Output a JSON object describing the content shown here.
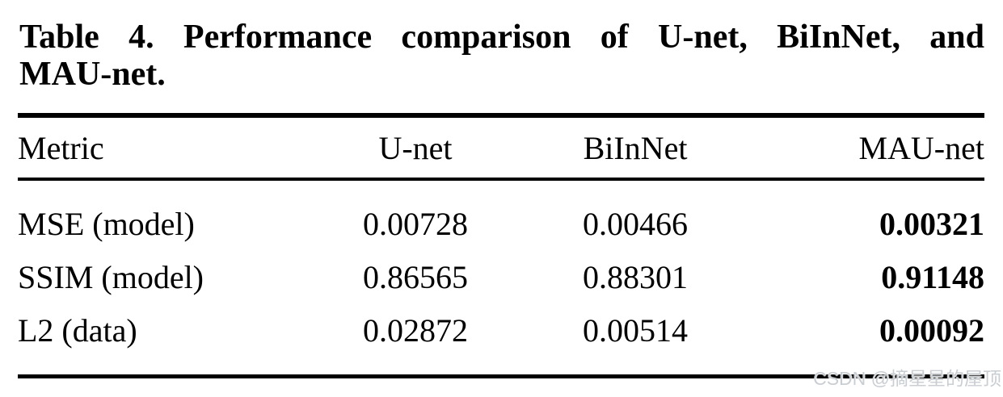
{
  "caption": {
    "line1": "Table 4. Performance comparison of U-net, BiInNet, and",
    "line2": "MAU-net.",
    "full": "Table 4. Performance comparison of U-net, BiInNet, and MAU-net."
  },
  "chart_data": {
    "type": "table",
    "title": "Table 4. Performance comparison of U-net, BiInNet, and MAU-net.",
    "columns": [
      "Metric",
      "U-net",
      "BiInNet",
      "MAU-net"
    ],
    "rows": [
      {
        "metric": "MSE (model)",
        "values": [
          "0.00728",
          "0.00466",
          "0.00321"
        ],
        "best_column": "MAU-net"
      },
      {
        "metric": "SSIM (model)",
        "values": [
          "0.86565",
          "0.88301",
          "0.91148"
        ],
        "best_column": "MAU-net"
      },
      {
        "metric": "L2 (data)",
        "values": [
          "0.02872",
          "0.00514",
          "0.00092"
        ],
        "best_column": "MAU-net"
      }
    ],
    "notes": "MAU-net column values are shown in bold (best results)"
  },
  "watermark": {
    "text": "CSDN @摘星星的屋顶",
    "color": "#c9ced3"
  },
  "colors": {
    "background": "#ffffff",
    "text": "#000000",
    "rule": "#000000"
  }
}
